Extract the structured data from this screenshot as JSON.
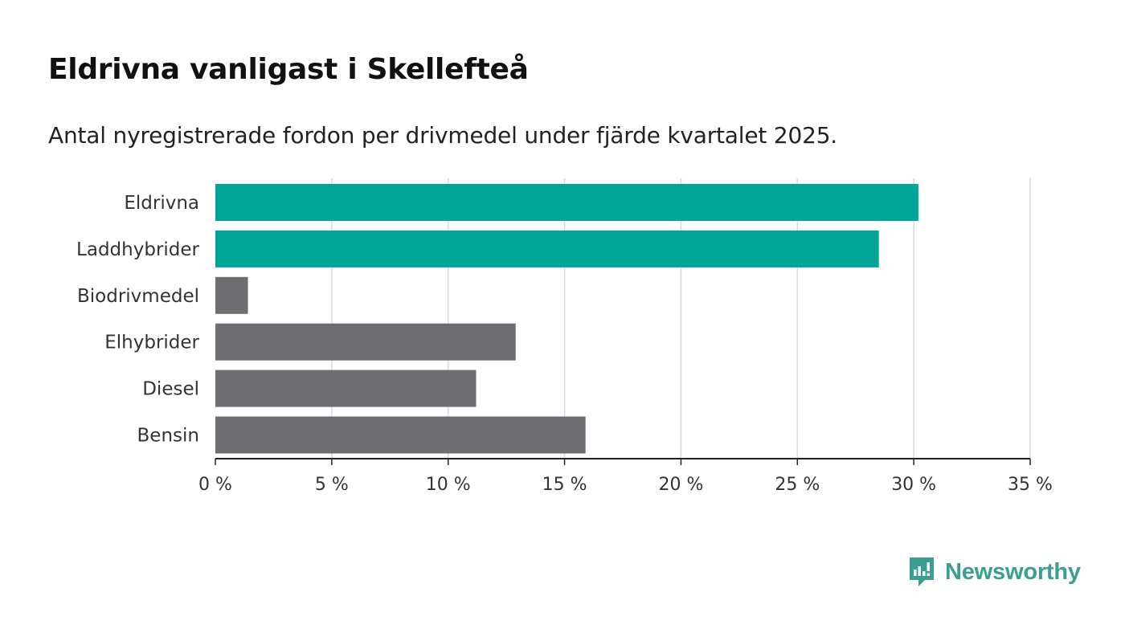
{
  "header": {
    "title": "Eldrivna vanligast i Skellefteå",
    "subtitle": "Antal nyregistrerade fordon per drivmedel under fjärde kvartalet 2025."
  },
  "colors": {
    "highlight": "#00a499",
    "default": "#6d6d72",
    "grid": "#d9d9d9",
    "axis": "#222222",
    "brand": "#3a9e93"
  },
  "chart_data": {
    "type": "bar",
    "orientation": "horizontal",
    "categories": [
      "Eldrivna",
      "Laddhybrider",
      "Biodrivmedel",
      "Elhybrider",
      "Diesel",
      "Bensin"
    ],
    "values": [
      30.2,
      28.5,
      1.4,
      12.9,
      11.2,
      15.9
    ],
    "highlighted": [
      true,
      true,
      false,
      false,
      false,
      false
    ],
    "xlim": [
      0,
      35
    ],
    "x_ticks": [
      0,
      5,
      10,
      15,
      20,
      25,
      30,
      35
    ],
    "x_tick_labels": [
      "0 %",
      "5 %",
      "10 %",
      "15 %",
      "20 %",
      "25 %",
      "30 %",
      "35 %"
    ],
    "xlabel": "",
    "ylabel": "",
    "grid": true
  },
  "brand": {
    "name": "Newsworthy",
    "icon": "newsworthy-logo-icon"
  }
}
